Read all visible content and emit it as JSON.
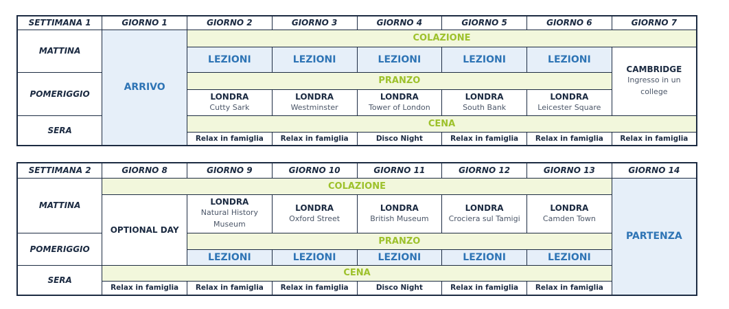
{
  "colors": {
    "border": "#1b2a41",
    "blue_fill": "#e6eff9",
    "blue_text": "#2e74b5",
    "green_fill": "#f2f7dc",
    "green_text": "#9dc12b"
  },
  "week1": {
    "headers": [
      "SETTIMANA 1",
      "GIORNO 1",
      "GIORNO 2",
      "GIORNO 3",
      "GIORNO 4",
      "GIORNO 5",
      "GIORNO 6",
      "GIORNO 7"
    ],
    "labels": {
      "morning": "MATTINA",
      "afternoon": "POMERIGGIO",
      "evening": "SERA"
    },
    "arrival": "ARRIVO",
    "breakfast": "COLAZIONE",
    "lunch": "PRANZO",
    "dinner": "CENA",
    "lessons": [
      "LEZIONI",
      "LEZIONI",
      "LEZIONI",
      "LEZIONI",
      "LEZIONI"
    ],
    "trips": [
      {
        "city": "LONDRA",
        "place": "Cutty Sark"
      },
      {
        "city": "LONDRA",
        "place": "Westminster"
      },
      {
        "city": "LONDRA",
        "place": "Tower of London"
      },
      {
        "city": "LONDRA",
        "place": "South Bank"
      },
      {
        "city": "LONDRA",
        "place": "Leicester Square"
      }
    ],
    "day7": {
      "city": "CAMBRIDGE",
      "place": "Ingresso in un college"
    },
    "evenings": [
      "Relax in famiglia",
      "Relax in famiglia",
      "Disco Night",
      "Relax in famiglia",
      "Relax in famiglia",
      "Relax in famiglia"
    ]
  },
  "week2": {
    "headers": [
      "SETTIMANA 2",
      "GIORNO 8",
      "GIORNO 9",
      "GIORNO 10",
      "GIORNO 11",
      "GIORNO 12",
      "GIORNO 13",
      "GIORNO 14"
    ],
    "labels": {
      "morning": "MATTINA",
      "afternoon": "POMERIGGIO",
      "evening": "SERA"
    },
    "optional": "OPTIONAL DAY",
    "departure": "PARTENZA",
    "breakfast": "COLAZIONE",
    "lunch": "PRANZO",
    "dinner": "CENA",
    "trips": [
      {
        "city": "LONDRA",
        "place": "Natural History Museum"
      },
      {
        "city": "LONDRA",
        "place": "Oxford Street"
      },
      {
        "city": "LONDRA",
        "place": "British Museum"
      },
      {
        "city": "LONDRA",
        "place": "Crociera sul Tamigi"
      },
      {
        "city": "LONDRA",
        "place": "Camden Town"
      }
    ],
    "lessons": [
      "LEZIONI",
      "LEZIONI",
      "LEZIONI",
      "LEZIONI",
      "LEZIONI"
    ],
    "evenings": [
      "Relax in famiglia",
      "Relax in famiglia",
      "Relax in famiglia",
      "Disco Night",
      "Relax in famiglia",
      "Relax in famiglia"
    ]
  }
}
